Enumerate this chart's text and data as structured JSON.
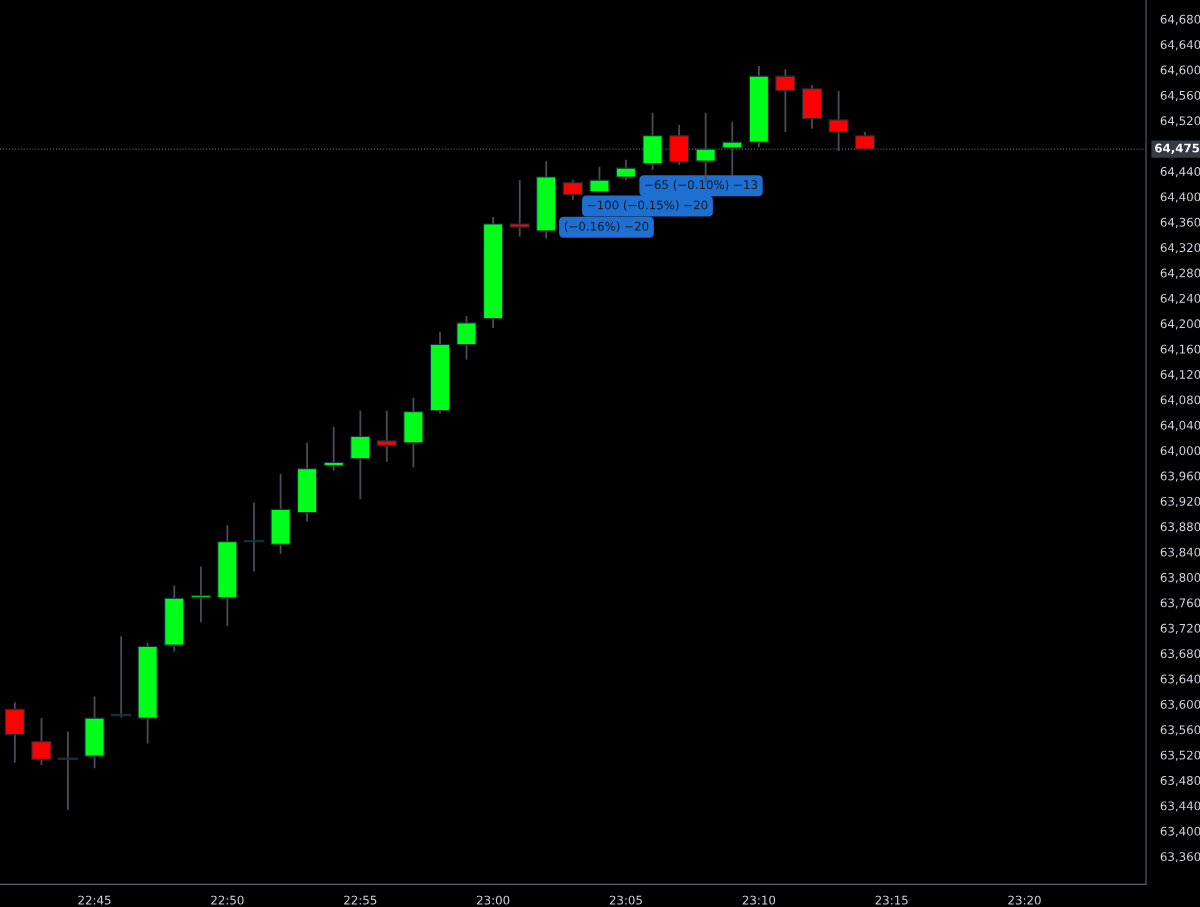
{
  "chart_data": {
    "type": "candlestick",
    "x": [
      22.7,
      22.7167,
      22.7333,
      22.75,
      22.7667,
      22.7833,
      22.8,
      22.8167,
      22.8333,
      22.85,
      22.8667,
      22.8833,
      22.9,
      22.9167,
      22.9333,
      22.95,
      22.9667,
      22.9833,
      23.0,
      23.0167,
      23.0333,
      23.05,
      23.0667,
      23.0833,
      23.1,
      23.1167,
      23.1333,
      23.15,
      23.1667,
      23.1833,
      23.2,
      23.2167,
      23.2333
    ],
    "ohlc": [
      [
        63592,
        63603,
        63508,
        63552
      ],
      [
        63541,
        63578,
        63504,
        63513
      ],
      [
        63513,
        63557,
        63433,
        63513
      ],
      [
        63518,
        63612,
        63499,
        63578
      ],
      [
        63582,
        63707,
        63579,
        63582
      ],
      [
        63578,
        63697,
        63538,
        63691
      ],
      [
        63693,
        63787,
        63683,
        63767
      ],
      [
        63768,
        63817,
        63729,
        63771
      ],
      [
        63768,
        63882,
        63723,
        63856
      ],
      [
        63856,
        63918,
        63809,
        63856
      ],
      [
        63852,
        63963,
        63837,
        63907
      ],
      [
        63902,
        64012,
        63888,
        63971
      ],
      [
        63976,
        64037,
        63968,
        63981
      ],
      [
        63987,
        64063,
        63923,
        64022
      ],
      [
        64015,
        64063,
        63982,
        64008
      ],
      [
        64012,
        64083,
        63973,
        64061
      ],
      [
        64063,
        64187,
        64058,
        64167
      ],
      [
        64167,
        64212,
        64143,
        64201
      ],
      [
        64208,
        64368,
        64193,
        64357
      ],
      [
        64357,
        64426,
        64337,
        64352
      ],
      [
        64346,
        64456,
        64334,
        64431
      ],
      [
        64422,
        64426,
        64395,
        64403
      ],
      [
        64408,
        64447,
        64408,
        64426
      ],
      [
        64431,
        64458,
        64426,
        64445
      ],
      [
        64452,
        64532,
        64442,
        64496
      ],
      [
        64496,
        64513,
        64450,
        64455
      ],
      [
        64456,
        64532,
        64423,
        64475
      ],
      [
        64477,
        64518,
        64433,
        64486
      ],
      [
        64486,
        64606,
        64478,
        64590
      ],
      [
        64590,
        64601,
        64502,
        64567
      ],
      [
        64570,
        64576,
        64507,
        64523
      ],
      [
        64521,
        64567,
        64472,
        64502
      ],
      [
        64496,
        64502,
        64475,
        64475
      ]
    ],
    "colors": [
      "#ff0000",
      "#ff0000",
      "#2a3f4a",
      "#00ff1a",
      "#2a3f4a",
      "#00ff1a",
      "#00ff1a",
      "#00ff1a",
      "#00ff1a",
      "#2a3f4a",
      "#00ff1a",
      "#00ff1a",
      "#00ff1a",
      "#00ff1a",
      "#ff0000",
      "#00ff1a",
      "#00ff1a",
      "#00ff1a",
      "#00ff1a",
      "#ff0000",
      "#00ff1a",
      "#ff0000",
      "#00ff1a",
      "#00ff1a",
      "#00ff1a",
      "#ff0000",
      "#00ff1a",
      "#00ff1a",
      "#00ff1a",
      "#ff0000",
      "#ff0000",
      "#ff0000",
      "#ff0000"
    ],
    "xlim": [
      22.6907,
      23.4095
    ],
    "xticks": [
      {
        "value": 22.75,
        "label": "22:45"
      },
      {
        "value": 22.8333,
        "label": "22:50"
      },
      {
        "value": 22.9167,
        "label": "22:55"
      },
      {
        "value": 23.0,
        "label": "23:00"
      },
      {
        "value": 23.0833,
        "label": "23:05"
      },
      {
        "value": 23.1667,
        "label": "23:10"
      },
      {
        "value": 23.25,
        "label": "23:15"
      },
      {
        "value": 23.3333,
        "label": "23:20"
      }
    ],
    "ylim": [
      63316,
      64710
    ],
    "yticks": [
      {
        "value": 63360,
        "label": "63,360"
      },
      {
        "value": 63400,
        "label": "63,400"
      },
      {
        "value": 63440,
        "label": "63,440"
      },
      {
        "value": 63480,
        "label": "63,480"
      },
      {
        "value": 63520,
        "label": "63,520"
      },
      {
        "value": 63560,
        "label": "63,560"
      },
      {
        "value": 63600,
        "label": "63,600"
      },
      {
        "value": 63640,
        "label": "63,640"
      },
      {
        "value": 63680,
        "label": "63,680"
      },
      {
        "value": 63720,
        "label": "63,720"
      },
      {
        "value": 63760,
        "label": "63,760"
      },
      {
        "value": 63800,
        "label": "63,800"
      },
      {
        "value": 63840,
        "label": "63,840"
      },
      {
        "value": 63880,
        "label": "63,880"
      },
      {
        "value": 63920,
        "label": "63,920"
      },
      {
        "value": 63960,
        "label": "63,960"
      },
      {
        "value": 64000,
        "label": "64,000"
      },
      {
        "value": 64040,
        "label": "64,040"
      },
      {
        "value": 64080,
        "label": "64,080"
      },
      {
        "value": 64120,
        "label": "64,120"
      },
      {
        "value": 64160,
        "label": "64,160"
      },
      {
        "value": 64200,
        "label": "64,200"
      },
      {
        "value": 64240,
        "label": "64,240"
      },
      {
        "value": 64280,
        "label": "64,280"
      },
      {
        "value": 64320,
        "label": "64,320"
      },
      {
        "value": 64360,
        "label": "64,360"
      },
      {
        "value": 64400,
        "label": "64,400"
      },
      {
        "value": 64440,
        "label": "64,440"
      },
      {
        "value": 64520,
        "label": "64,520"
      },
      {
        "value": 64560,
        "label": "64,560"
      },
      {
        "value": 64600,
        "label": "64,600"
      },
      {
        "value": 64640,
        "label": "64,640"
      },
      {
        "value": 64680,
        "label": "64,680"
      }
    ],
    "ref_lines": [
      {
        "axis": "y",
        "value": 64475,
        "label": "64,475",
        "color": "#5d606b",
        "line_style": "dotted"
      }
    ],
    "annotations": [
      "(−0.16%) −20",
      "−100 (−0.15%) −20",
      "−65 (−0.10%) −13"
    ],
    "grid": false
  }
}
